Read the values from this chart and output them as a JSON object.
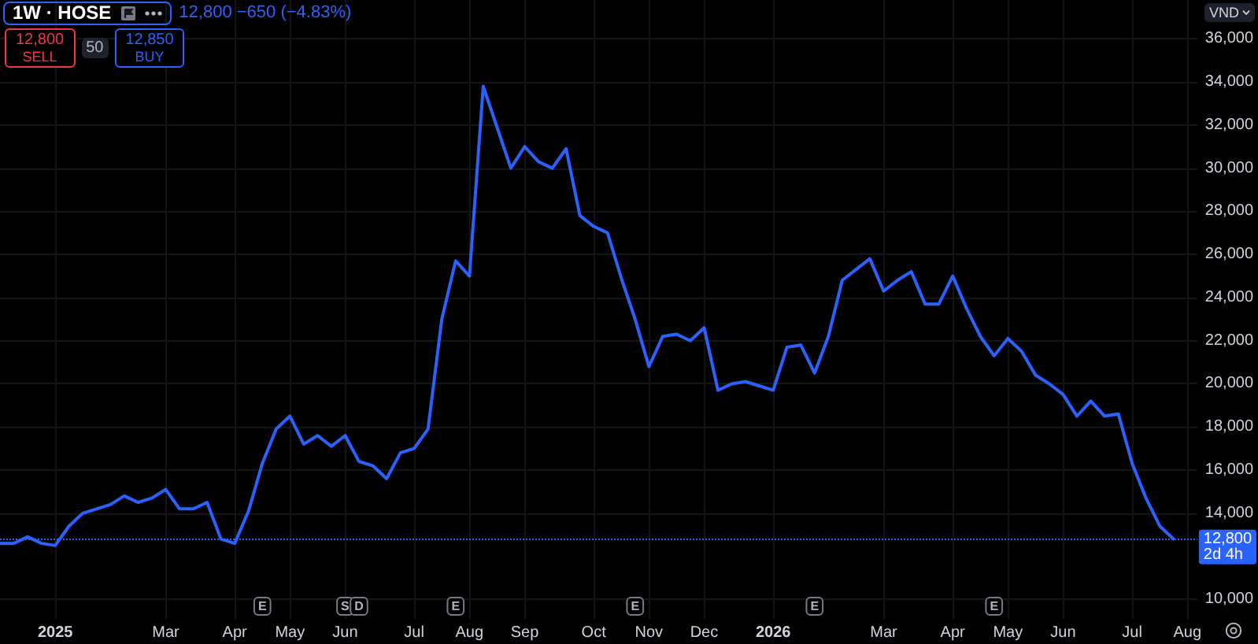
{
  "chart_data": {
    "type": "line",
    "title": "1W · HOSE",
    "subtitle": "12,800 −650 (−4.83%)",
    "ylabel": "VND",
    "x": [
      "2024-12-09",
      "2024-12-16",
      "2024-12-23",
      "2024-12-30",
      "2025-01-06",
      "2025-01-13",
      "2025-01-20",
      "2025-02-03",
      "2025-02-10",
      "2025-02-17",
      "2025-02-24",
      "2025-03-03",
      "2025-03-10",
      "2025-03-17",
      "2025-03-24",
      "2025-03-31",
      "2025-04-07",
      "2025-04-14",
      "2025-04-21",
      "2025-04-28",
      "2025-05-05",
      "2025-05-12",
      "2025-05-19",
      "2025-05-26",
      "2025-06-02",
      "2025-06-09",
      "2025-06-16",
      "2025-06-23",
      "2025-06-30",
      "2025-07-07",
      "2025-07-14",
      "2025-07-21",
      "2025-07-28",
      "2025-08-04",
      "2025-08-11",
      "2025-08-18",
      "2025-08-25",
      "2025-09-01",
      "2025-09-08",
      "2025-09-15",
      "2025-09-22",
      "2025-09-29",
      "2025-10-06",
      "2025-10-13",
      "2025-10-20",
      "2025-10-27",
      "2025-11-03",
      "2025-11-10",
      "2025-11-17",
      "2025-11-24",
      "2025-12-01",
      "2025-12-08",
      "2025-12-15",
      "2025-12-22",
      "2025-12-29",
      "2026-01-05",
      "2026-01-12",
      "2026-01-19",
      "2026-01-26",
      "2026-02-02",
      "2026-02-09",
      "2026-02-23",
      "2026-03-02",
      "2026-03-09",
      "2026-03-16",
      "2026-03-23",
      "2026-03-30",
      "2026-04-06",
      "2026-04-13",
      "2026-04-20",
      "2026-04-27",
      "2026-05-04",
      "2026-05-11",
      "2026-05-18",
      "2026-05-25",
      "2026-06-01",
      "2026-06-08",
      "2026-06-15",
      "2026-06-22",
      "2026-06-29",
      "2026-07-06",
      "2026-07-13",
      "2026-07-20",
      "2026-07-27"
    ],
    "series": [
      {
        "color": "#2962ff",
        "values": [
          12600,
          12600,
          12900,
          12600,
          12500,
          13400,
          14000,
          14400,
          14800,
          14500,
          14700,
          15100,
          14200,
          14200,
          14500,
          12800,
          12600,
          14100,
          16300,
          17900,
          18500,
          17200,
          17600,
          17100,
          17600,
          16400,
          16200,
          15600,
          16800,
          17000,
          17900,
          23000,
          25700,
          25000,
          33800,
          31900,
          30000,
          31000,
          30300,
          30000,
          30900,
          27800,
          27300,
          27000,
          24900,
          23000,
          20800,
          22200,
          22300,
          22000,
          22600,
          19700,
          20000,
          20100,
          19900,
          19700,
          21700,
          21800,
          20500,
          22200,
          24800,
          25800,
          24300,
          24800,
          25200,
          23700,
          23700,
          25000,
          23500,
          22200,
          21300,
          22100,
          21500,
          20400,
          20000,
          19500,
          18500,
          19200,
          18500,
          18600,
          16300,
          14700,
          13400,
          12800
        ]
      }
    ],
    "xlim": [
      "2024-12-09",
      "2026-08-08"
    ],
    "xticks": [
      {
        "value": "2025-01-06",
        "label": "2025"
      },
      {
        "value": "2025-03-03",
        "label": "Mar"
      },
      {
        "value": "2025-04-07",
        "label": "Apr"
      },
      {
        "value": "2025-05-05",
        "label": "May"
      },
      {
        "value": "2025-06-02",
        "label": "Jun"
      },
      {
        "value": "2025-07-07",
        "label": "Jul"
      },
      {
        "value": "2025-08-04",
        "label": "Aug"
      },
      {
        "value": "2025-09-01",
        "label": "Sep"
      },
      {
        "value": "2025-10-06",
        "label": "Oct"
      },
      {
        "value": "2025-11-03",
        "label": "Nov"
      },
      {
        "value": "2025-12-01",
        "label": "Dec"
      },
      {
        "value": "2026-01-05",
        "label": "2026"
      },
      {
        "value": "2026-03-02",
        "label": "Mar"
      },
      {
        "value": "2026-04-06",
        "label": "Apr"
      },
      {
        "value": "2026-05-04",
        "label": "May"
      },
      {
        "value": "2026-06-01",
        "label": "Jun"
      },
      {
        "value": "2026-07-06",
        "label": "Jul"
      },
      {
        "value": "2026-08-03",
        "label": "Aug"
      }
    ],
    "ylim": [
      9100,
      37800
    ],
    "yticks": [
      {
        "value": 10000,
        "label": "10,000"
      },
      {
        "value": 14000,
        "label": "14,000"
      },
      {
        "value": 16000,
        "label": "16,000"
      },
      {
        "value": 18000,
        "label": "18,000"
      },
      {
        "value": 20000,
        "label": "20,000"
      },
      {
        "value": 22000,
        "label": "22,000"
      },
      {
        "value": 24000,
        "label": "24,000"
      },
      {
        "value": 26000,
        "label": "26,000"
      },
      {
        "value": 28000,
        "label": "28,000"
      },
      {
        "value": 30000,
        "label": "30,000"
      },
      {
        "value": 32000,
        "label": "32,000"
      },
      {
        "value": 34000,
        "label": "34,000"
      },
      {
        "value": 36000,
        "label": "36,000"
      }
    ],
    "grid": true,
    "marker": "none",
    "line_style": "solid",
    "ref_lines": [
      {
        "axis": "y",
        "value": 12800,
        "label": "12,800\n2d 4h",
        "color": "#2962ff",
        "line_style": "dotted"
      }
    ],
    "annotations": [
      "12,800\nSELL",
      "50",
      "12,850\nBUY",
      {
        "text": "E",
        "x": "2025-04-21"
      },
      {
        "text": "S",
        "x": "2025-06-02"
      },
      {
        "text": "D",
        "x": "2025-06-09"
      },
      {
        "text": "E",
        "x": "2025-07-28"
      },
      {
        "text": "E",
        "x": "2025-10-27"
      },
      {
        "text": "E",
        "x": "2026-01-26"
      },
      {
        "text": "E",
        "x": "2026-04-27"
      }
    ]
  }
}
